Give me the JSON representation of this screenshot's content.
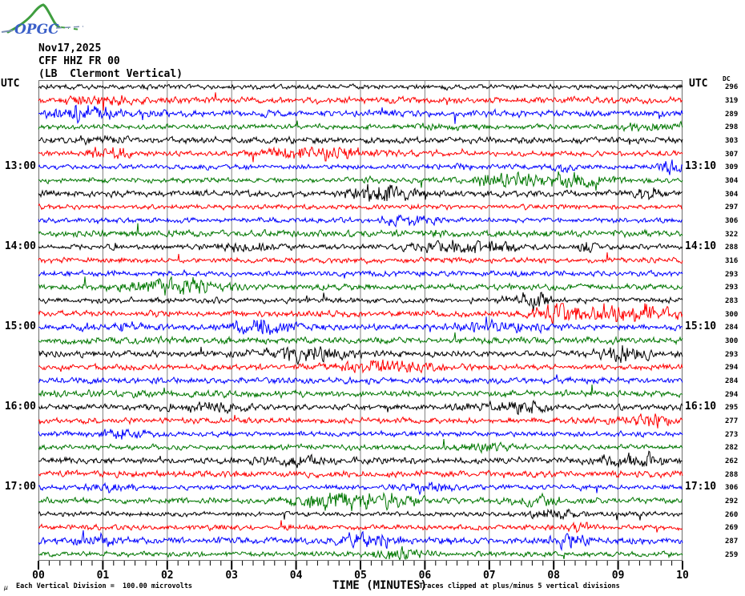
{
  "header": {
    "logo_text": "OPGC",
    "date": "Nov17,2025",
    "station": "CFF HHZ FR 00",
    "description": "(LB  Clermont Vertical)"
  },
  "axis_labels": {
    "utc_left": "UTC",
    "utc_right": "UTC",
    "dc_label": "DC",
    "x_axis_title": "TIME (MINUTES)"
  },
  "footer": {
    "micro_symbol": "µ",
    "division_note": "Each Vertical Division =  100.00 microvolts",
    "clip_note": "Traces clipped at plus/minus 5 vertical divisions"
  },
  "chart_data": {
    "type": "line",
    "title": "CFF HHZ FR 00 (LB Clermont Vertical) helicorder, Nov17,2025",
    "xlabel": "TIME (MINUTES)",
    "x_range_minutes": [
      0,
      10
    ],
    "x_tick_labels": [
      "00",
      "01",
      "02",
      "03",
      "04",
      "05",
      "06",
      "07",
      "08",
      "09",
      "10"
    ],
    "minor_ticks_per_minute": 5,
    "minutes_per_trace": 10,
    "trace_count": 36,
    "grid": "vertical gridlines at each minute",
    "trace_colors_cycle": [
      "#000000",
      "#ff0000",
      "#0000ff",
      "#007700"
    ],
    "left_hour_labels": [
      {
        "row": 7,
        "label": "13:00"
      },
      {
        "row": 13,
        "label": "14:00"
      },
      {
        "row": 19,
        "label": "15:00"
      },
      {
        "row": 25,
        "label": "16:00"
      },
      {
        "row": 31,
        "label": "17:00"
      }
    ],
    "right_hour_labels": [
      {
        "row": 7,
        "label": "13:10"
      },
      {
        "row": 13,
        "label": "14:10"
      },
      {
        "row": 19,
        "label": "15:10"
      },
      {
        "row": 25,
        "label": "16:10"
      },
      {
        "row": 31,
        "label": "17:10"
      }
    ],
    "dc_offsets": [
      296,
      319,
      289,
      298,
      303,
      307,
      309,
      304,
      304,
      297,
      306,
      322,
      288,
      316,
      293,
      293,
      283,
      300,
      284,
      300,
      293,
      294,
      284,
      294,
      295,
      277,
      273,
      282,
      262,
      288,
      306,
      292,
      260,
      269,
      287,
      259
    ],
    "division_microvolts": 100.0,
    "clip_divisions": 5,
    "waveform": "continuous band-limited seismic background noise, roughly plus/minus half a division in amplitude, with sporadic short higher-amplitude transients; traces clipped at plus/minus 5 vertical divisions"
  }
}
